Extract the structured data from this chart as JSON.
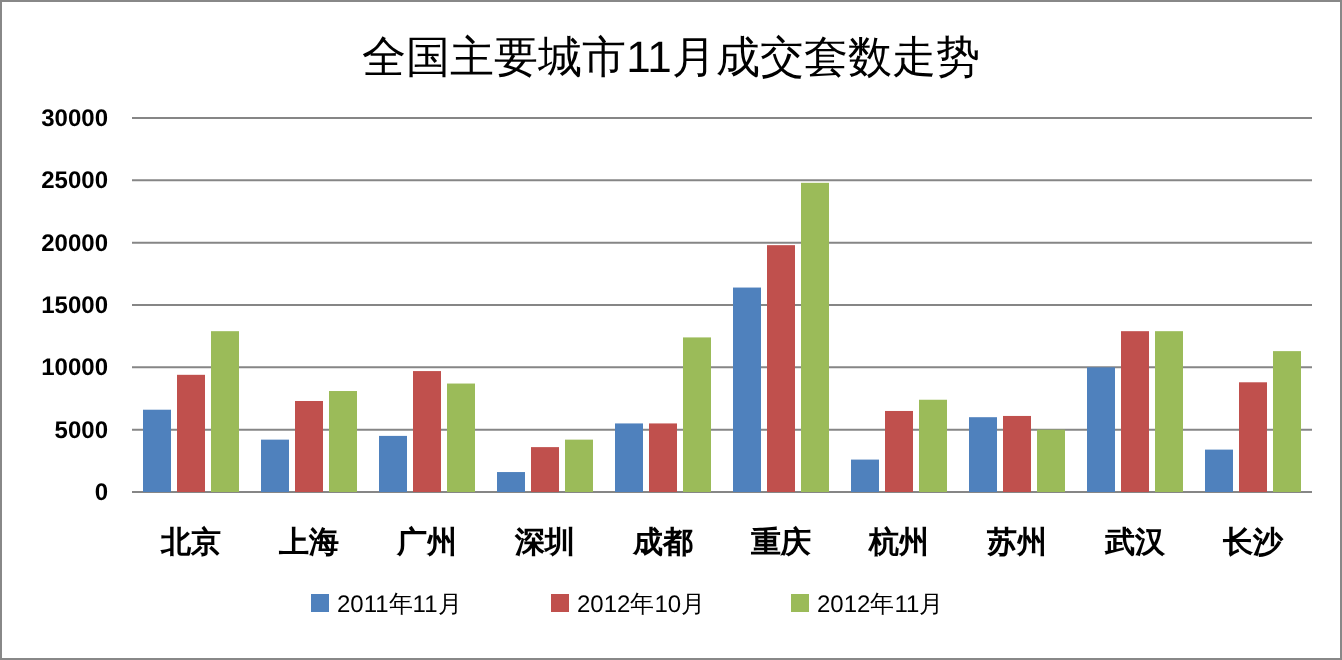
{
  "chart_data": {
    "type": "bar",
    "title": "全国主要城市11月成交套数走势",
    "categories": [
      "北京",
      "上海",
      "广州",
      "深圳",
      "成都",
      "重庆",
      "杭州",
      "苏州",
      "武汉",
      "长沙"
    ],
    "series": [
      {
        "name": "2011年11月",
        "color": "#4f81bd",
        "values": [
          6600,
          4200,
          4500,
          1600,
          5500,
          16400,
          2600,
          6000,
          10000,
          3400
        ]
      },
      {
        "name": "2012年10月",
        "color": "#c0504d",
        "values": [
          9400,
          7300,
          9700,
          3600,
          5500,
          19800,
          6500,
          6100,
          12900,
          8800
        ]
      },
      {
        "name": "2012年11月",
        "color": "#9bbb59",
        "values": [
          12900,
          8100,
          8700,
          4200,
          12400,
          24800,
          7400,
          5000,
          12900,
          11300
        ]
      }
    ],
    "ylim": [
      0,
      30000
    ],
    "yticks": [
      0,
      5000,
      10000,
      15000,
      20000,
      25000,
      30000
    ],
    "grid": "y",
    "legend": "bottom"
  }
}
